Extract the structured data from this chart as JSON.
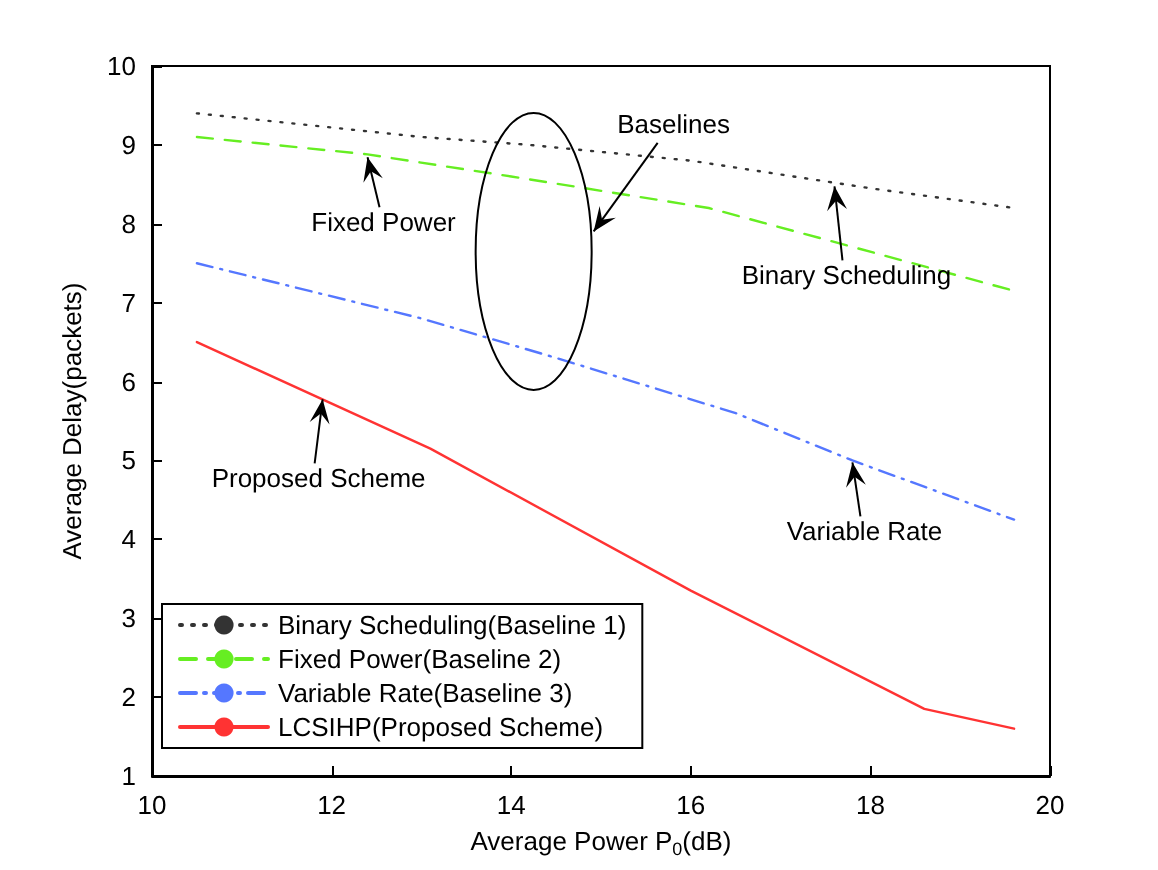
{
  "chart_data": {
    "type": "line",
    "xlabel": "Average Power P$_{0}$(dB)",
    "ylabel": "Average Delay(packets)",
    "xlim": [
      10,
      20
    ],
    "xticks": [
      10,
      12,
      14,
      16,
      18,
      20
    ],
    "ylim": [
      1,
      10
    ],
    "yticks": [
      1,
      2,
      3,
      4,
      5,
      6,
      7,
      8,
      9,
      10
    ],
    "grid": false,
    "legend": "bottom left",
    "marker": "none",
    "series": [
      {
        "name": "Binary Scheduling(Baseline 1)",
        "color": "#333333",
        "line_style": "dotted",
        "x": [
          10.5,
          13,
          14.2,
          16,
          18,
          19.6
        ],
        "values": [
          9.4,
          9.1,
          9.0,
          8.8,
          8.45,
          8.2
        ]
      },
      {
        "name": "Fixed Power(Baseline 2)",
        "color": "#66ee22",
        "line_style": "dashed",
        "x": [
          10.5,
          12.4,
          14,
          16.2,
          17.5,
          19.6
        ],
        "values": [
          9.1,
          8.88,
          8.6,
          8.2,
          7.8,
          7.15
        ]
      },
      {
        "name": "Variable Rate(Baseline 3)",
        "color": "#5577ff",
        "line_style": "dashdot",
        "x": [
          10.5,
          13,
          14.5,
          16.5,
          17.8,
          19.6
        ],
        "values": [
          7.5,
          6.8,
          6.3,
          5.6,
          5.0,
          4.25
        ]
      },
      {
        "name": "LCSIHP(Proposed Scheme)",
        "color": "#ff3333",
        "line_style": "solid",
        "x": [
          10.5,
          13.1,
          16,
          18.6,
          19.6
        ],
        "values": [
          6.5,
          5.15,
          3.35,
          1.85,
          1.6
        ]
      }
    ],
    "annotations": [
      "Baselines",
      {
        "text": "Fixed Power",
        "x": 12.4,
        "y": 8.87
      },
      {
        "text": "Binary Scheduling",
        "x": 17.6,
        "y": 8.5
      },
      {
        "text": "Variable Rate",
        "x": 17.8,
        "y": 5.0
      },
      {
        "text": "Proposed Scheme",
        "x": 11.9,
        "y": 5.8
      }
    ]
  }
}
